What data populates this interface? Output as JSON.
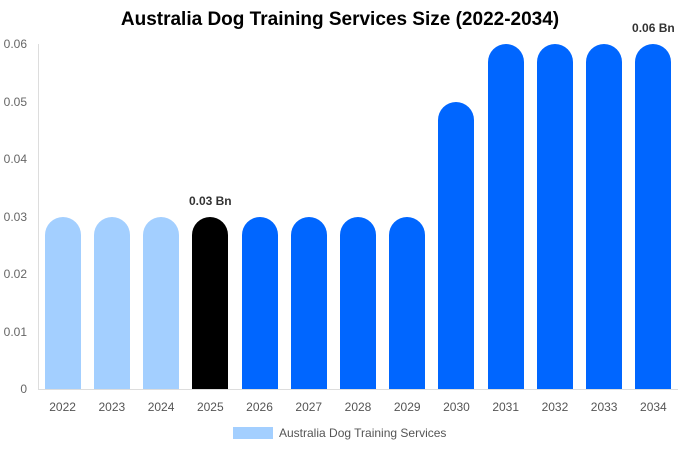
{
  "chart_data": {
    "type": "bar",
    "title": "Australia Dog Training Services Size (2022-2034)",
    "xlabel": "",
    "ylabel": "",
    "categories": [
      "2022",
      "2023",
      "2024",
      "2025",
      "2026",
      "2027",
      "2028",
      "2029",
      "2030",
      "2031",
      "2032",
      "2033",
      "2034"
    ],
    "series": [
      {
        "name": "Australia Dog Training Services",
        "values": [
          0.03,
          0.03,
          0.03,
          0.03,
          0.03,
          0.03,
          0.03,
          0.03,
          0.05,
          0.06,
          0.06,
          0.06,
          0.06
        ]
      }
    ],
    "bar_colors": [
      "#a3cfff",
      "#a3cfff",
      "#a3cfff",
      "#000000",
      "#0066ff",
      "#0066ff",
      "#0066ff",
      "#0066ff",
      "#0066ff",
      "#0066ff",
      "#0066ff",
      "#0066ff",
      "#0066ff"
    ],
    "yticks": [
      "0",
      "0.01",
      "0.02",
      "0.03",
      "0.04",
      "0.05",
      "0.06"
    ],
    "ylim": [
      0,
      0.06
    ],
    "annotations": [
      {
        "index": 3,
        "text": "0.03 Bn"
      },
      {
        "index": 12,
        "text": "0.06 Bn"
      }
    ],
    "legend": {
      "label": "Australia Dog Training Services",
      "color": "#a3cfff",
      "position": "bottom"
    },
    "grid": false
  }
}
